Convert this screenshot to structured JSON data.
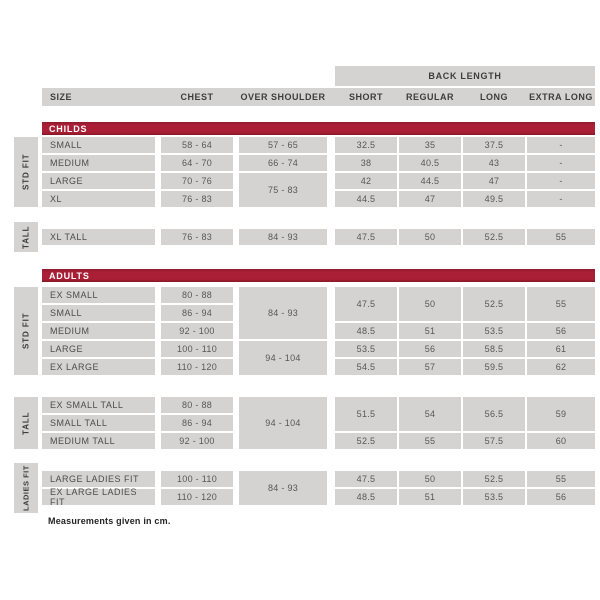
{
  "chart_data": {
    "type": "table",
    "back_length_label": "BACK LENGTH",
    "col": {
      "size": "SIZE",
      "chest": "CHEST",
      "os": "OVER SHOULDER",
      "short": "SHORT",
      "regular": "REGULAR",
      "long": "LONG",
      "extra_long": "EXTRA LONG"
    },
    "childs": {
      "banner": "CHILDS",
      "std_fit_label": "STD FIT",
      "tall_label": "TALL",
      "std_rows": {
        "small": {
          "size": "SMALL",
          "chest": "58 - 64",
          "os": "57 - 65",
          "short": "32.5",
          "regular": "35",
          "long": "37.5",
          "extra_long": "-"
        },
        "medium": {
          "size": "MEDIUM",
          "chest": "64 - 70",
          "os": "66 - 74",
          "short": "38",
          "regular": "40.5",
          "long": "43",
          "extra_long": "-"
        },
        "large": {
          "size": "LARGE",
          "chest": "70 - 76",
          "os": "75 - 83",
          "short": "42",
          "regular": "44.5",
          "long": "47",
          "extra_long": "-"
        },
        "xl": {
          "size": "XL",
          "chest": "76 - 83",
          "short": "44.5",
          "regular": "47",
          "long": "49.5",
          "extra_long": "-"
        }
      },
      "tall_rows": {
        "xl_tall": {
          "size": "XL TALL",
          "chest": "76 - 83",
          "os": "84 - 93",
          "short": "47.5",
          "regular": "50",
          "long": "52.5",
          "extra_long": "55"
        }
      }
    },
    "adults": {
      "banner": "ADULTS",
      "std_fit_label": "STD FIT",
      "tall_label": "TALL",
      "ladies_label": "LADIES FIT",
      "std": {
        "os_small_sizes": "84 - 93",
        "os_large_sizes": "94 - 104",
        "merged_back": {
          "short": "47.5",
          "regular": "50",
          "long": "52.5",
          "extra_long": "55"
        },
        "rows": {
          "ex_small": {
            "size": "EX SMALL",
            "chest": "80 - 88"
          },
          "small": {
            "size": "SMALL",
            "chest": "86 - 94"
          },
          "medium": {
            "size": "MEDIUM",
            "chest": "92 - 100",
            "short": "48.5",
            "regular": "51",
            "long": "53.5",
            "extra_long": "56"
          },
          "large": {
            "size": "LARGE",
            "chest": "100 - 110",
            "short": "53.5",
            "regular": "56",
            "long": "58.5",
            "extra_long": "61"
          },
          "ex_large": {
            "size": "EX LARGE",
            "chest": "110 - 120",
            "short": "54.5",
            "regular": "57",
            "long": "59.5",
            "extra_long": "62"
          }
        }
      },
      "tall": {
        "os": "94 - 104",
        "merged_back": {
          "short": "51.5",
          "regular": "54",
          "long": "56.5",
          "extra_long": "59"
        },
        "rows": {
          "ex_small_tall": {
            "size": "EX SMALL TALL",
            "chest": "80 - 88"
          },
          "small_tall": {
            "size": "SMALL TALL",
            "chest": "86 - 94"
          },
          "medium_tall": {
            "size": "MEDIUM TALL",
            "chest": "92 - 100",
            "short": "52.5",
            "regular": "55",
            "long": "57.5",
            "extra_long": "60"
          }
        }
      },
      "ladies": {
        "os": "84 - 93",
        "rows": {
          "large_ladies": {
            "size": "LARGE LADIES FIT",
            "chest": "100 - 110",
            "short": "47.5",
            "regular": "50",
            "long": "52.5",
            "extra_long": "55"
          },
          "ex_large_ladies": {
            "size": "EX LARGE LADIES FIT",
            "chest": "110 - 120",
            "short": "48.5",
            "regular": "51",
            "long": "53.5",
            "extra_long": "56"
          }
        }
      }
    },
    "footnote": "Measurements given in cm.",
    "colors": {
      "banner_red": "#a71e33",
      "cell_gray": "#d5d3d1",
      "text": "#56575a"
    }
  }
}
